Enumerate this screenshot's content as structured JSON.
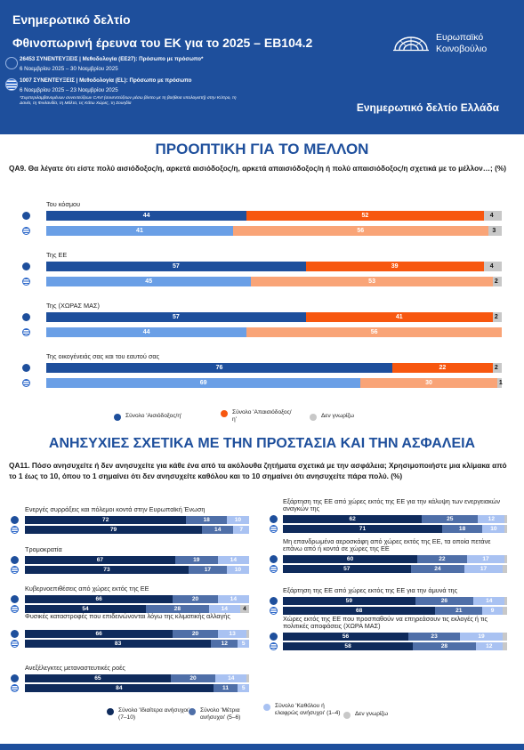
{
  "header": {
    "title": "Ενημερωτικό δελτίο",
    "subtitle": "Φθινοπωρινή έρευνα του ΕΚ για το 2025 – EB104.2",
    "logo_text_line1": "Ευρωπαϊκό",
    "logo_text_line2": "Κοινοβούλιο",
    "eu_line1": "26453 ΣΥΝΕΝΤΕΥΞΕΙΣ | Μεθοδολογία (ΕΕ27): Πρόσωπο με πρόσωπο*",
    "eu_line2": "6 Νοεμβρίου 2025 – 30 Νοεμβρίου 2025",
    "gr_line1": "1007 ΣΥΝΕΝΤΕΥΞΕΙΣ | Μεθοδολογία (EL): Πρόσωπο με πρόσωπο",
    "gr_line2": "6 Νοεμβρίου 2025 – 23 Νοεμβρίου 2025",
    "note": "*Συμπεριλαμβανομένων συνεντεύξεων CAVI (συνεντεύξεων μέσω βίντεο με τη βοήθεια υπολογιστή) στην Κύπρο, τη Δανία, τη Φινλανδία, τη Μάλτα, τις Κάτω Χώρες, τη Σουηδία",
    "country": "Ενημερωτικό δελτίο Ελλάδα"
  },
  "section1": {
    "title": "ΠΡΟΟΠΤΙΚΗ ΓΙΑ ΤΟ ΜΕΛΛΟΝ",
    "question": "QA9. Θα λέγατε ότι είστε πολύ αισιόδοξος/η, αρκετά αισιόδοξος/η, αρκετά απαισιόδοξος/η ή πολύ απαισιόδοξος/η σχετικά με το μέλλον…; (%)",
    "legend": [
      "Σύνολο 'Αισιόδοξος/η'",
      "Σύνολο 'Απαισιόδοξος/η'",
      "Δεν γνωρίζω"
    ]
  },
  "section2": {
    "title": "ΑΝΗΣΥΧΙΕΣ ΣΧΕΤΙΚΑ ΜΕ ΤΗΝ ΠΡΟΣΤΑΣΙΑ ΚΑΙ ΤΗΝ ΑΣΦΑΛΕΙΑ",
    "question": "QA11. Πόσο ανησυχείτε ή δεν ανησυχείτε για κάθε ένα από τα ακόλουθα ζητήματα σχετικά με την ασφάλεια; Χρησιμοποιήστε μια κλίμακα από το 1 έως το 10, όπου το 1 σημαίνει ότι δεν ανησυχείτε καθόλου και το 10 σημαίνει ότι ανησυχείτε πάρα πολύ. (%)",
    "legend": [
      "Σύνολο 'Ιδιαίτερα ανήσυχοι' (7–10)",
      "Σύνολο 'Μέτρια ανήσυχοι' (5–6)",
      "Σύνολο 'Καθόλου ή ελαφρώς ανήσυχοι' (1–4)",
      "Δεν γνωρίζω"
    ]
  },
  "colors": {
    "blue": "#1e4f9c",
    "light_blue": "#6a9fe6",
    "orange_eu": "#f7570f",
    "orange_gr": "#f9a477",
    "grey": "#c8c8c8",
    "navy": "#0f2b5c",
    "mid_blue": "#4f6fa8",
    "pale_blue": "#a9c2f2"
  },
  "chart_data": [
    {
      "type": "bar",
      "stacked": true,
      "orientation": "horizontal",
      "categories": [
        "Του κόσμου",
        "Της ΕΕ",
        "Της (ΧΩΡΑΣ ΜΑΣ)",
        "Της οικογένειάς σας και του εαυτού σας"
      ],
      "series": [
        {
          "name": "Σύνολο 'Αισιόδοξος/η'",
          "eu": [
            44,
            57,
            57,
            76
          ],
          "gr": [
            41,
            45,
            44,
            69
          ]
        },
        {
          "name": "Σύνολο 'Απαισιόδοξος/η'",
          "eu": [
            52,
            39,
            41,
            22
          ],
          "gr": [
            56,
            53,
            56,
            30
          ]
        },
        {
          "name": "Δεν γνωρίζω",
          "eu": [
            4,
            4,
            2,
            2
          ],
          "gr": [
            3,
            2,
            0,
            1
          ]
        }
      ],
      "xlim": [
        0,
        100
      ]
    },
    {
      "type": "bar",
      "stacked": true,
      "orientation": "horizontal",
      "categories": [
        "Ενεργές συρράξεις και πόλεμοι κοντά στην Ευρωπαϊκή Ένωση",
        "Τρομοκρατία",
        "Κυβερνοεπιθέσεις από χώρες εκτός της ΕΕ",
        "Φυσικές καταστροφές που επιδεινώνονται λόγω της κλιματικής αλλαγής",
        "Ανεξέλεγκτες μεταναστευτικές ροές",
        "Εξάρτηση της ΕΕ από χώρες εκτός της ΕΕ για την κάλυψη των ενεργειακών αναγκών της",
        "Μη επανδρωμένα αεροσκάφη από χώρες εκτός της ΕΕ, τα οποία πετάνε επάνω από ή κοντά σε χώρες της ΕΕ",
        "Εξάρτηση της ΕΕ από χώρες εκτός της ΕΕ για την άμυνά της",
        "Χώρες εκτός της ΕΕ που προσπαθούν να επηρεάσουν τις εκλογές ή τις πολιτικές αποφάσεις (ΧΩΡΑ ΜΑΣ)"
      ],
      "series": [
        {
          "name": "Σύνολο 'Ιδιαίτερα ανήσυχοι' (7–10)",
          "eu": [
            72,
            67,
            66,
            66,
            65,
            62,
            60,
            59,
            56
          ],
          "gr": [
            79,
            73,
            54,
            83,
            84,
            71,
            57,
            68,
            58
          ]
        },
        {
          "name": "Σύνολο 'Μέτρια ανήσυχοι' (5–6)",
          "eu": [
            18,
            19,
            20,
            20,
            20,
            25,
            22,
            26,
            23
          ],
          "gr": [
            14,
            17,
            28,
            12,
            11,
            18,
            24,
            21,
            28
          ]
        },
        {
          "name": "Σύνολο 'Καθόλου ή ελαφρώς ανήσυχοι' (1–4)",
          "eu": [
            10,
            14,
            14,
            13,
            14,
            12,
            17,
            14,
            19
          ],
          "gr": [
            7,
            10,
            14,
            5,
            5,
            10,
            17,
            9,
            12
          ]
        },
        {
          "name": "Δεν γνωρίζω",
          "eu": [
            0,
            0,
            0,
            1,
            1,
            1,
            1,
            1,
            2
          ],
          "gr": [
            0,
            0,
            4,
            0,
            0,
            1,
            2,
            2,
            2
          ]
        }
      ],
      "xlim": [
        0,
        100
      ]
    }
  ]
}
